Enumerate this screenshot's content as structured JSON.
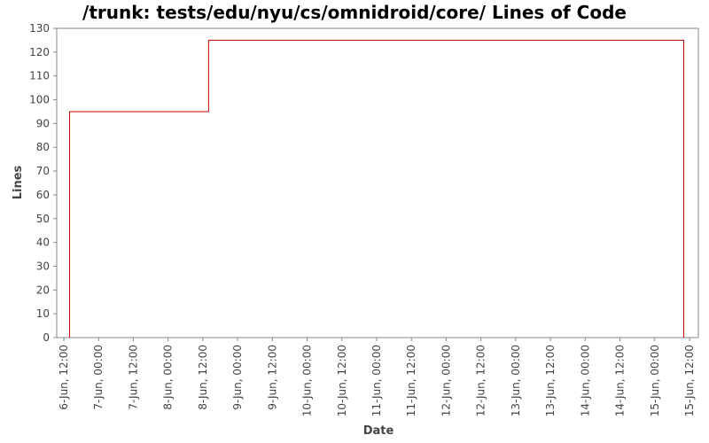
{
  "chart_data": {
    "type": "line",
    "title": "/trunk: tests/edu/nyu/cs/omnidroid/core/ Lines of Code",
    "xlabel": "Date",
    "ylabel": "Lines",
    "ylim": [
      0,
      130
    ],
    "yticks": [
      0,
      10,
      20,
      30,
      40,
      50,
      60,
      70,
      80,
      90,
      100,
      110,
      120,
      130
    ],
    "xticks": [
      "6-Jun, 12:00",
      "7-Jun, 00:00",
      "7-Jun, 12:00",
      "8-Jun, 00:00",
      "8-Jun, 12:00",
      "9-Jun, 00:00",
      "9-Jun, 12:00",
      "10-Jun, 00:00",
      "10-Jun, 12:00",
      "11-Jun, 00:00",
      "11-Jun, 12:00",
      "12-Jun, 00:00",
      "12-Jun, 12:00",
      "13-Jun, 00:00",
      "13-Jun, 12:00",
      "14-Jun, 00:00",
      "14-Jun, 12:00",
      "15-Jun, 00:00",
      "15-Jun, 12:00"
    ],
    "xlim": [
      "6-Jun, 12:00",
      "15-Jun, 12:00"
    ],
    "grid": false,
    "legend": "none",
    "series": [
      {
        "color": "#cc0000",
        "step": true,
        "points": [
          {
            "x": "6-Jun, 14:00",
            "y": 0
          },
          {
            "x": "6-Jun, 14:00",
            "y": 95
          },
          {
            "x": "8-Jun, 14:00",
            "y": 95
          },
          {
            "x": "8-Jun, 14:00",
            "y": 125
          },
          {
            "x": "15-Jun, 10:00",
            "y": 125
          },
          {
            "x": "15-Jun, 10:00",
            "y": 0
          }
        ]
      }
    ]
  }
}
